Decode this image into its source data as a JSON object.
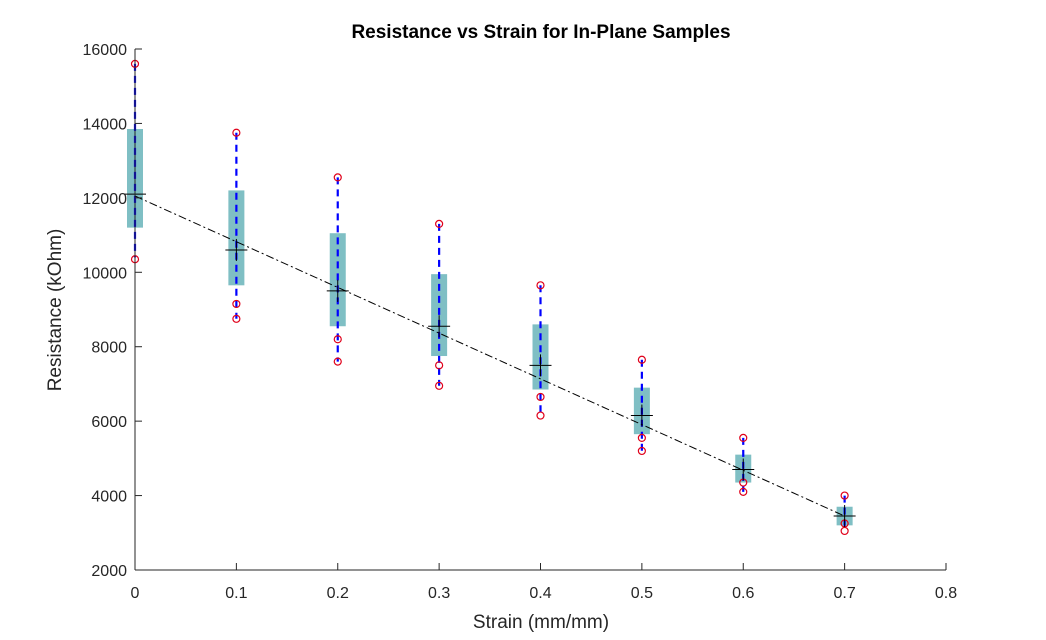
{
  "chart_data": {
    "type": "box",
    "title": "Resistance vs Strain for In-Plane Samples",
    "xlabel": "Strain (mm/mm)",
    "ylabel": "Resistance (kOhm)",
    "xlim": [
      0,
      0.8
    ],
    "ylim": [
      2000,
      16000
    ],
    "xticks": [
      0,
      0.1,
      0.2,
      0.3,
      0.4,
      0.5,
      0.6,
      0.7,
      0.8
    ],
    "xtick_labels": [
      "0",
      "0.1",
      "0.2",
      "0.3",
      "0.4",
      "0.5",
      "0.6",
      "0.7",
      "0.8"
    ],
    "yticks": [
      2000,
      4000,
      6000,
      8000,
      10000,
      12000,
      14000,
      16000
    ],
    "ytick_labels": [
      "2000",
      "4000",
      "6000",
      "8000",
      "10000",
      "12000",
      "14000",
      "16000"
    ],
    "grid": false,
    "boxes": [
      {
        "x": 0.0,
        "q1": 11200,
        "q3": 13850,
        "whisker_low": 10400,
        "whisker_high": 15600,
        "mean": 12100,
        "markers": [
          15600,
          10350
        ]
      },
      {
        "x": 0.1,
        "q1": 9650,
        "q3": 12200,
        "whisker_low": 8750,
        "whisker_high": 13750,
        "mean": 10600,
        "markers": [
          13750,
          9150,
          8750
        ]
      },
      {
        "x": 0.2,
        "q1": 8550,
        "q3": 11050,
        "whisker_low": 7600,
        "whisker_high": 12550,
        "mean": 9500,
        "markers": [
          12550,
          8200,
          7600
        ]
      },
      {
        "x": 0.3,
        "q1": 7750,
        "q3": 9950,
        "whisker_low": 6950,
        "whisker_high": 11300,
        "mean": 8550,
        "markers": [
          11300,
          7500,
          6950
        ]
      },
      {
        "x": 0.4,
        "q1": 6850,
        "q3": 8600,
        "whisker_low": 6150,
        "whisker_high": 9650,
        "mean": 7500,
        "markers": [
          9650,
          6650,
          6150
        ]
      },
      {
        "x": 0.5,
        "q1": 5650,
        "q3": 6900,
        "whisker_low": 5200,
        "whisker_high": 7650,
        "mean": 6150,
        "markers": [
          7650,
          5550,
          5200
        ]
      },
      {
        "x": 0.6,
        "q1": 4350,
        "q3": 5100,
        "whisker_low": 4100,
        "whisker_high": 5550,
        "mean": 4700,
        "markers": [
          5550,
          4350,
          4100
        ]
      },
      {
        "x": 0.7,
        "q1": 3200,
        "q3": 3700,
        "whisker_low": 3050,
        "whisker_high": 4000,
        "mean": 3450,
        "markers": [
          4000,
          3250,
          3050
        ]
      }
    ],
    "fit_line": {
      "x": [
        0.0,
        0.7
      ],
      "y": [
        12050,
        3450
      ]
    },
    "colors": {
      "box": "#7fbfc4",
      "whisker": "#0000ff",
      "marker": "#e0001a",
      "mean": "#000000",
      "fit": "#000000",
      "axis": "#262626"
    }
  }
}
